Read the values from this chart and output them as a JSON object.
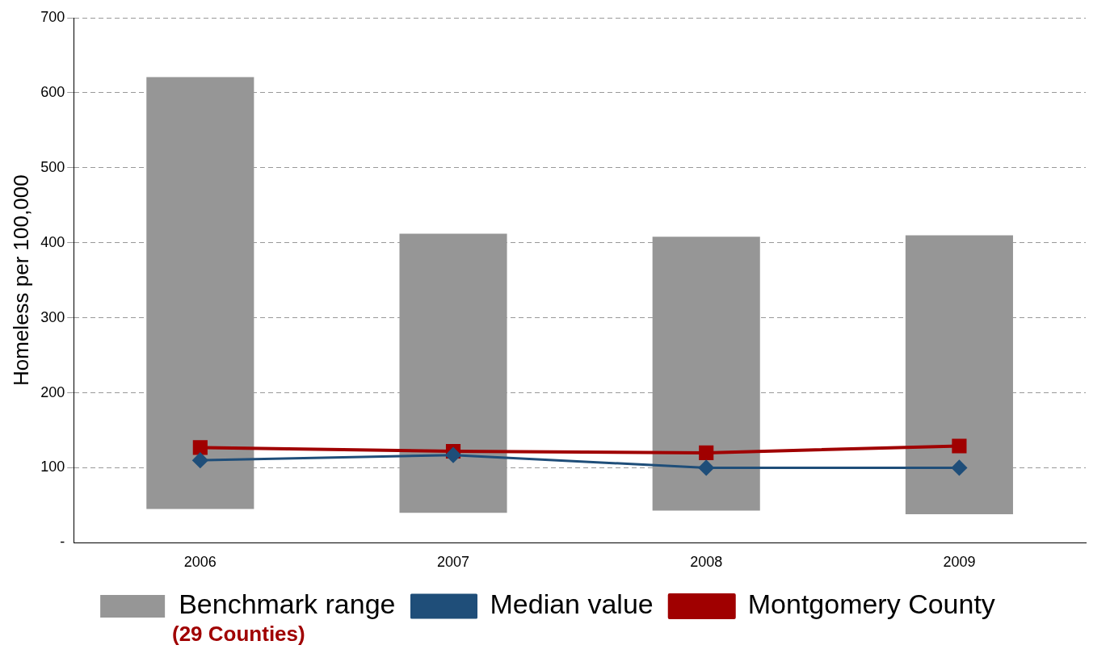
{
  "chart_data": {
    "type": "bar",
    "ylabel": "Homeless per 100,000",
    "categories": [
      "2006",
      "2007",
      "2008",
      "2009"
    ],
    "series": [
      {
        "name": "Benchmark range",
        "color": "#969696",
        "base": [
          45,
          40,
          43,
          38
        ],
        "values": [
          576,
          372,
          365,
          372
        ]
      },
      {
        "name": "Median value",
        "type": "line",
        "color": "#1f4e79",
        "marker": "diamond",
        "values": [
          110,
          117,
          100,
          100
        ]
      },
      {
        "name": "Montgomery County",
        "type": "line",
        "color": "#a00000",
        "marker": "square",
        "values": [
          127,
          122,
          120,
          129
        ]
      }
    ],
    "ylim": [
      0,
      700
    ],
    "yticks": [
      {
        "value": 0,
        "label": "-"
      },
      100,
      200,
      300,
      400,
      500,
      600,
      700
    ],
    "grid": "y",
    "legend": "bottom",
    "annotations": [
      "(29 Counties)"
    ]
  }
}
